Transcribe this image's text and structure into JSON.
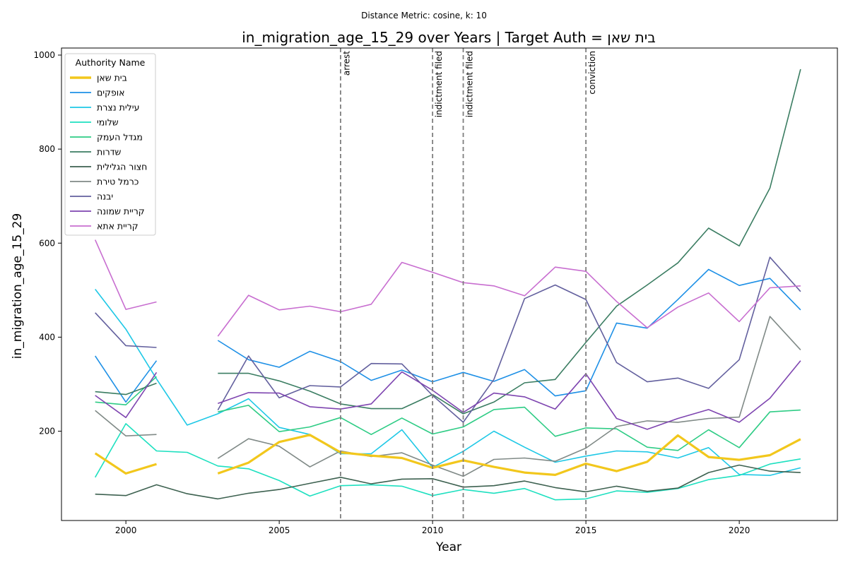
{
  "suptitle": "Distance Metric: cosine, k: 10",
  "chart_data": {
    "type": "line",
    "title": "in_migration_age_15_29 over Years | Target Auth = בית שאן",
    "xlabel": "Year",
    "ylabel": "in_migration_age_15_29",
    "xlim": [
      1997.9,
      2023.2
    ],
    "ylim": [
      10,
      1015
    ],
    "xticks": [
      2000,
      2005,
      2010,
      2015,
      2020
    ],
    "yticks": [
      200,
      400,
      600,
      800,
      1000
    ],
    "grid": false,
    "legend": {
      "title": "Authority Name",
      "placement": "top-left"
    },
    "x": [
      1999,
      2000,
      2001,
      2002,
      2003,
      2004,
      2005,
      2006,
      2007,
      2008,
      2009,
      2010,
      2011,
      2012,
      2013,
      2014,
      2015,
      2016,
      2017,
      2018,
      2019,
      2020,
      2021,
      2022
    ],
    "events": [
      {
        "x": 2007,
        "label": "arrest"
      },
      {
        "x": 2010,
        "label": "indictment filed"
      },
      {
        "x": 2011,
        "label": "indictment filed"
      },
      {
        "x": 2015,
        "label": "conviction"
      }
    ],
    "series": [
      {
        "name": "בית שאן",
        "color": "#f2c71c",
        "target": true,
        "values": [
          153,
          110,
          130,
          null,
          110,
          133,
          177,
          192,
          155,
          148,
          143,
          122,
          138,
          124,
          112,
          107,
          131,
          115,
          135,
          191,
          145,
          139,
          149,
          183
        ]
      },
      {
        "name": "אופקים",
        "color": "#1e90e6",
        "values": [
          360,
          262,
          350,
          null,
          393,
          352,
          336,
          370,
          348,
          308,
          330,
          305,
          325,
          306,
          331,
          275,
          286,
          430,
          419,
          480,
          544,
          510,
          525,
          458
        ]
      },
      {
        "name": "עילית נצרת",
        "color": "#1ec8e6",
        "values": [
          502,
          417,
          311,
          213,
          237,
          269,
          208,
          193,
          152,
          152,
          203,
          123,
          157,
          200,
          166,
          134,
          147,
          158,
          156,
          143,
          165,
          108,
          106,
          122
        ]
      },
      {
        "name": "שלומי",
        "color": "#1ee0c0",
        "values": [
          102,
          216,
          158,
          155,
          126,
          120,
          95,
          62,
          84,
          86,
          83,
          63,
          76,
          68,
          78,
          54,
          56,
          73,
          70,
          78,
          97,
          106,
          130,
          141
        ]
      },
      {
        "name": "מגדל העמק",
        "color": "#2ecc85",
        "values": [
          262,
          256,
          316,
          null,
          241,
          255,
          199,
          209,
          229,
          193,
          228,
          194,
          209,
          246,
          251,
          189,
          207,
          205,
          166,
          159,
          203,
          165,
          241,
          245
        ]
      },
      {
        "name": "שדרות",
        "color": "#3b7d62",
        "values": [
          284,
          278,
          302,
          null,
          323,
          323,
          307,
          285,
          258,
          248,
          248,
          278,
          237,
          262,
          303,
          310,
          389,
          466,
          511,
          558,
          632,
          594,
          717,
          970
        ]
      },
      {
        "name": "חצור הגלילית",
        "color": "#3d6150",
        "values": [
          66,
          63,
          86,
          67,
          56,
          68,
          76,
          89,
          102,
          88,
          98,
          99,
          81,
          84,
          94,
          80,
          71,
          83,
          72,
          79,
          112,
          128,
          115,
          112
        ]
      },
      {
        "name": "כרמל טירת",
        "color": "#808a87",
        "values": [
          244,
          190,
          193,
          null,
          142,
          184,
          168,
          124,
          158,
          146,
          154,
          128,
          104,
          140,
          143,
          136,
          164,
          210,
          222,
          219,
          227,
          230,
          444,
          373
        ]
      },
      {
        "name": "יבנה",
        "color": "#63609e",
        "values": [
          452,
          382,
          378,
          null,
          245,
          360,
          271,
          297,
          294,
          344,
          343,
          276,
          219,
          310,
          482,
          511,
          480,
          346,
          305,
          313,
          291,
          352,
          570,
          497
        ]
      },
      {
        "name": "קריית שמונה",
        "color": "#7e45b0",
        "values": [
          276,
          229,
          325,
          null,
          259,
          282,
          281,
          252,
          247,
          258,
          326,
          287,
          240,
          281,
          273,
          247,
          322,
          227,
          204,
          227,
          246,
          219,
          270,
          350
        ]
      },
      {
        "name": "קריית אתא",
        "color": "#c86ed0",
        "values": [
          607,
          459,
          475,
          null,
          402,
          489,
          458,
          466,
          454,
          470,
          559,
          538,
          516,
          509,
          488,
          549,
          540,
          476,
          420,
          464,
          494,
          433,
          505,
          509
        ]
      }
    ]
  }
}
